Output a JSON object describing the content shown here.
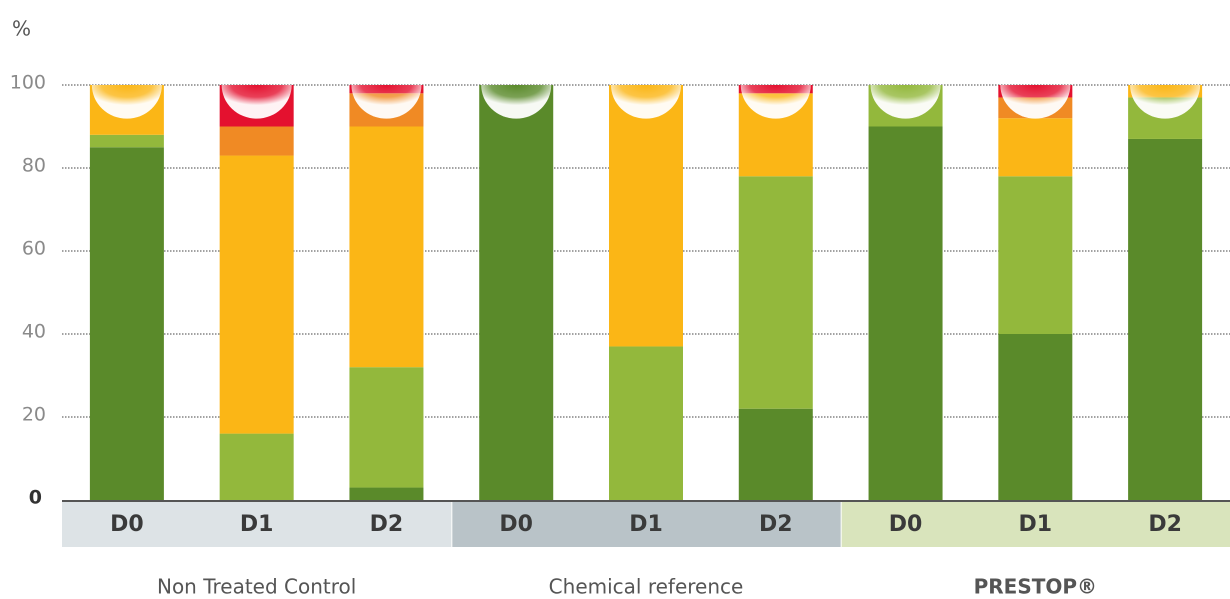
{
  "chart_data": {
    "type": "stacked-bar",
    "y_label": "%",
    "ylim": [
      0,
      100
    ],
    "yticks": [
      0,
      20,
      40,
      60,
      80,
      100
    ],
    "grid": true,
    "groups": [
      {
        "label": "Non Treated Control",
        "categories": [
          "D0",
          "D1",
          "D2"
        ],
        "color": "#dde3e6",
        "label_color": "#555555",
        "label_bold": false
      },
      {
        "label": "Chemical reference",
        "categories": [
          "D0",
          "D1",
          "D2"
        ],
        "color": "#b9c3c8",
        "label_color": "#555555",
        "label_bold": false
      },
      {
        "label": "PRESTOP®",
        "categories": [
          "D0",
          "D1",
          "D2"
        ],
        "color": "#d9e4bc",
        "label_color": "#5a8a2a",
        "label_bold": true
      }
    ],
    "series": [
      {
        "color": "#5a8a2a",
        "values": [
          85,
          0,
          3,
          100,
          0,
          22,
          90,
          40,
          87
        ]
      },
      {
        "color": "#93b83c",
        "values": [
          3,
          16,
          29,
          0,
          37,
          56,
          10,
          38,
          10
        ]
      },
      {
        "color": "#fbb616",
        "values": [
          12,
          67,
          58,
          0,
          63,
          20,
          0,
          14,
          3
        ]
      },
      {
        "color": "#f08a24",
        "values": [
          0,
          7,
          8,
          0,
          0,
          0,
          0,
          5,
          0
        ]
      },
      {
        "color": "#e4112f",
        "values": [
          0,
          10,
          2,
          0,
          0,
          2,
          0,
          3,
          0
        ]
      }
    ]
  }
}
